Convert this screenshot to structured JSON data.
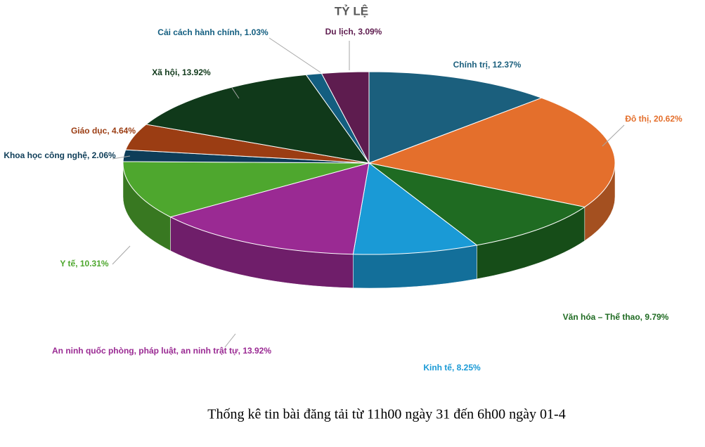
{
  "chart_data": {
    "type": "pie",
    "title": "TỶ LỆ",
    "categories": [
      "Chính trị",
      "Đô thị",
      "Văn hóa – Thể thao",
      "Kinh tế",
      "An ninh quốc phòng, pháp luật, an ninh trật tự",
      "Y tế",
      "Khoa học công nghệ",
      "Giáo dục",
      "Xã hội",
      "Cải cách hành chính",
      "Du lịch"
    ],
    "values": [
      12.37,
      20.62,
      9.79,
      8.25,
      13.92,
      10.31,
      2.06,
      4.64,
      13.92,
      1.03,
      3.09
    ],
    "value_labels": [
      "12.37%",
      "20.62%",
      "9.79%",
      "8.25%",
      "13.92%",
      "10.31%",
      "2.06%",
      "4.64%",
      "13.92%",
      "1.03%",
      "3.09%"
    ],
    "colors": [
      "#1b5f7d",
      "#e46f2c",
      "#1f6b22",
      "#1a9ad6",
      "#9a2a93",
      "#4ea72e",
      "#0e3d58",
      "#9b3d13",
      "#10391a",
      "#135e80",
      "#5e1c4f"
    ],
    "label_colors": [
      "#1b5f7d",
      "#e46f2c",
      "#1f6b22",
      "#1a9ad6",
      "#9a2a93",
      "#4ea72e",
      "#0e3d58",
      "#9b3d13",
      "#10391a",
      "#135e80",
      "#5e1c4f"
    ]
  },
  "caption": "Thống kê tin bài đăng tải từ 11h00 ngày 31 đến 6h00 ngày 01-4"
}
